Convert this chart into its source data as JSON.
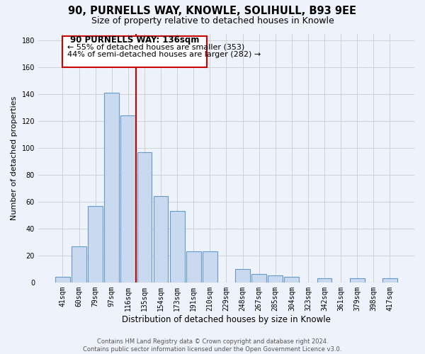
{
  "title": "90, PURNELLS WAY, KNOWLE, SOLIHULL, B93 9EE",
  "subtitle": "Size of property relative to detached houses in Knowle",
  "xlabel": "Distribution of detached houses by size in Knowle",
  "ylabel": "Number of detached properties",
  "bar_labels": [
    "41sqm",
    "60sqm",
    "79sqm",
    "97sqm",
    "116sqm",
    "135sqm",
    "154sqm",
    "173sqm",
    "191sqm",
    "210sqm",
    "229sqm",
    "248sqm",
    "267sqm",
    "285sqm",
    "304sqm",
    "323sqm",
    "342sqm",
    "361sqm",
    "379sqm",
    "398sqm",
    "417sqm"
  ],
  "bar_values": [
    4,
    27,
    57,
    141,
    124,
    97,
    64,
    53,
    23,
    23,
    0,
    10,
    6,
    5,
    4,
    0,
    3,
    0,
    3,
    0,
    3
  ],
  "bar_color": "#c9d9f0",
  "bar_edge_color": "#6699cc",
  "property_line_label": "90 PURNELLS WAY: 136sqm",
  "annotation_line1": "← 55% of detached houses are smaller (353)",
  "annotation_line2": "44% of semi-detached houses are larger (282) →",
  "annotation_box_edge": "#cc0000",
  "annotation_box_bg": "#ffffff",
  "vline_color": "#cc0000",
  "vline_x": 4.5,
  "ylim": [
    0,
    185
  ],
  "yticks": [
    0,
    20,
    40,
    60,
    80,
    100,
    120,
    140,
    160,
    180
  ],
  "grid_color": "#cccccc",
  "bg_color": "#eef2fa",
  "footer_line1": "Contains HM Land Registry data © Crown copyright and database right 2024.",
  "footer_line2": "Contains public sector information licensed under the Open Government Licence v3.0.",
  "title_fontsize": 10.5,
  "subtitle_fontsize": 9,
  "xlabel_fontsize": 8.5,
  "ylabel_fontsize": 8,
  "tick_fontsize": 7,
  "footer_fontsize": 6,
  "annot_title_fontsize": 8.5,
  "annot_text_fontsize": 8
}
